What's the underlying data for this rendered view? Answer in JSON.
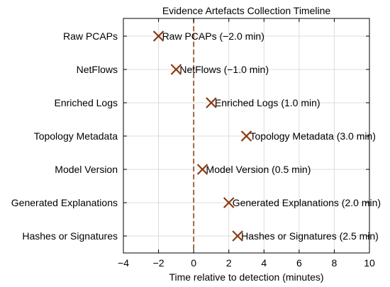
{
  "chart_data": {
    "type": "scatter",
    "title": "Evidence Artefacts Collection Timeline",
    "xlabel": "Time relative to detection (minutes)",
    "ylabel": "",
    "xlim": [
      -4,
      10
    ],
    "xticks": [
      -4,
      -2,
      0,
      2,
      4,
      6,
      8,
      10
    ],
    "xtick_labels": [
      "−4",
      "−2",
      "0",
      "2",
      "4",
      "6",
      "8",
      "10"
    ],
    "grid": true,
    "reference_line": {
      "x": 0,
      "style": "dashed",
      "color": "#8b4513"
    },
    "marker": "x",
    "marker_color": "#8b3a10",
    "categories": [
      "Raw PCAPs",
      "NetFlows",
      "Enriched Logs",
      "Topology Metadata",
      "Model Version",
      "Generated Explanations",
      "Hashes or Signatures"
    ],
    "points": [
      {
        "category": "Raw PCAPs",
        "x": -2.0,
        "label": "Raw PCAPs (−2.0 min)"
      },
      {
        "category": "NetFlows",
        "x": -1.0,
        "label": "NetFlows (−1.0 min)"
      },
      {
        "category": "Enriched Logs",
        "x": 1.0,
        "label": "Enriched Logs (1.0 min)"
      },
      {
        "category": "Topology Metadata",
        "x": 3.0,
        "label": "Topology Metadata (3.0 min)"
      },
      {
        "category": "Model Version",
        "x": 0.5,
        "label": "Model Version (0.5 min)"
      },
      {
        "category": "Generated Explanations",
        "x": 2.0,
        "label": "Generated Explanations (2.0 min)"
      },
      {
        "category": "Hashes or Signatures",
        "x": 2.5,
        "label": "Hashes or Signatures (2.5 min)"
      }
    ]
  }
}
